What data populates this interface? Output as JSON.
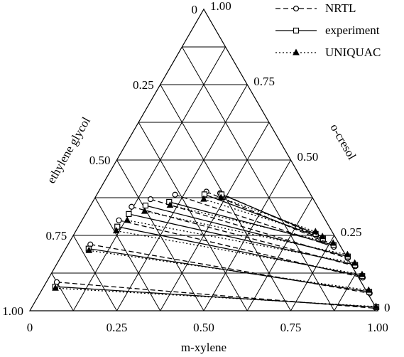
{
  "chart_data": {
    "type": "ternary",
    "bottom_axis": {
      "label": "m-xylene",
      "ticks": [
        0,
        {
          "value": 0.25,
          "label": "0.25"
        },
        {
          "value": 0.5,
          "label": "0.50"
        },
        {
          "value": 0.75,
          "label": "0.75"
        },
        {
          "value": 1,
          "label": "1.00"
        }
      ]
    },
    "left_axis": {
      "label": "ethylene glycol",
      "ticks": [
        0,
        {
          "value": 0.25,
          "label": "0.25"
        },
        {
          "value": 0.5,
          "label": "0.50"
        },
        {
          "value": 0.75,
          "label": "0.75"
        },
        {
          "value": 1,
          "label": "1.00"
        }
      ]
    },
    "right_axis": {
      "label": "o-cresol",
      "ticks": [
        0,
        {
          "value": 0.25,
          "label": "0.25"
        },
        {
          "value": 0.5,
          "label": "0.50"
        },
        {
          "value": 0.75,
          "label": "0.75"
        },
        {
          "value": 1,
          "label": "1.00"
        }
      ]
    },
    "grid_divisions": 8,
    "legend": "top-right",
    "series": [
      {
        "name": "NRTL",
        "color": "#000000",
        "dash": "dashed",
        "marker": "circle",
        "tie_lines": [
          [
            [
              0.03,
              0.095
            ],
            [
              0.992,
              0.008
            ]
          ],
          [
            [
              0.064,
              0.22
            ],
            [
              0.948,
              0.058
            ]
          ],
          [
            [
              0.106,
              0.3
            ],
            [
              0.902,
              0.11
            ]
          ],
          [
            [
              0.12,
              0.345
            ],
            [
              0.862,
              0.148
            ]
          ],
          [
            [
              0.162,
              0.37
            ],
            [
              0.826,
              0.175
            ]
          ],
          [
            [
              0.225,
              0.385
            ],
            [
              0.768,
              0.212
            ]
          ],
          [
            [
              0.31,
              0.395
            ],
            [
              0.726,
              0.232
            ]
          ],
          [
            [
              0.352,
              0.39
            ],
            [
              0.698,
              0.25
            ]
          ]
        ]
      },
      {
        "name": "experiment",
        "color": "#000000",
        "dash": "solid",
        "marker": "square",
        "tie_lines": [
          [
            [
              0.033,
              0.08
            ],
            [
              0.99,
              0.012
            ]
          ],
          [
            [
              0.066,
              0.206
            ],
            [
              0.944,
              0.063
            ]
          ],
          [
            [
              0.112,
              0.279
            ],
            [
              0.898,
              0.115
            ]
          ],
          [
            [
              0.124,
              0.321
            ],
            [
              0.859,
              0.152
            ]
          ],
          [
            [
              0.158,
              0.349
            ],
            [
              0.824,
              0.18
            ]
          ],
          [
            [
              0.22,
              0.361
            ],
            [
              0.764,
              0.218
            ]
          ],
          [
            [
              0.309,
              0.386
            ],
            [
              0.723,
              0.239
            ]
          ],
          [
            [
              0.358,
              0.386
            ],
            [
              0.694,
              0.255
            ]
          ]
        ]
      },
      {
        "name": "UNIQUAC",
        "color": "#000000",
        "dash": "dotted",
        "marker": "triangle",
        "tie_lines": [
          [
            [
              0.036,
              0.075
            ],
            [
              0.988,
              0.014
            ]
          ],
          [
            [
              0.07,
              0.2
            ],
            [
              0.94,
              0.068
            ]
          ],
          [
            [
              0.116,
              0.265
            ],
            [
              0.895,
              0.12
            ]
          ],
          [
            [
              0.13,
              0.3
            ],
            [
              0.855,
              0.158
            ]
          ],
          [
            [
              0.165,
              0.33
            ],
            [
              0.82,
              0.186
            ]
          ],
          [
            [
              0.228,
              0.35
            ],
            [
              0.76,
              0.224
            ]
          ],
          [
            [
              0.315,
              0.37
            ],
            [
              0.718,
              0.246
            ]
          ],
          [
            [
              0.362,
              0.375
            ],
            [
              0.69,
              0.262
            ]
          ]
        ]
      }
    ]
  }
}
